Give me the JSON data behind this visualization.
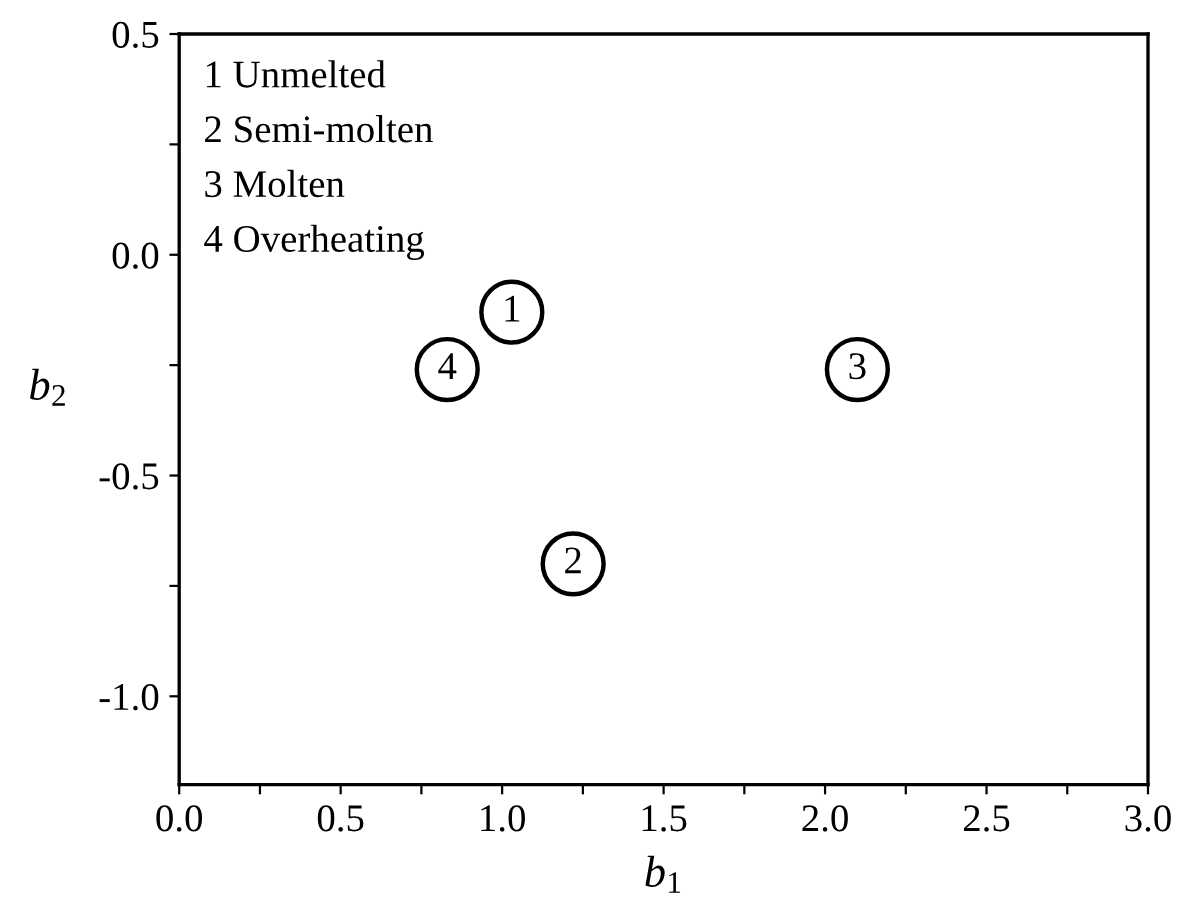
{
  "chart_data": {
    "type": "scatter",
    "xlabel": "b$_{1}$",
    "ylabel": "b$_{2}$",
    "series": [
      {
        "color": "#000000",
        "x": [
          1.03,
          1.22,
          2.1,
          0.83
        ],
        "values": [
          -0.13,
          -0.7,
          -0.26,
          -0.26
        ]
      }
    ],
    "marker": "circle",
    "annotations": [
      {
        "text": "1",
        "x": 1.03,
        "y": -0.13
      },
      {
        "text": "2",
        "x": 1.22,
        "y": -0.7
      },
      {
        "text": "3",
        "x": 2.1,
        "y": -0.26
      },
      {
        "text": "4",
        "x": 0.83,
        "y": -0.26
      },
      "1 Unmelted",
      "2 Semi-molten",
      "3 Molten",
      "4 Overheating"
    ],
    "xlim": [
      0,
      3
    ],
    "ylim": [
      -1.2,
      0.5
    ],
    "xticks": [
      {
        "value": 0,
        "label": "0.0"
      },
      {
        "value": 0.25,
        "label": null
      },
      0.5,
      {
        "value": 0.75,
        "label": null
      },
      {
        "value": 1,
        "label": "1.0"
      },
      {
        "value": 1.25,
        "label": null
      },
      1.5,
      {
        "value": 1.75,
        "label": null
      },
      {
        "value": 2,
        "label": "2.0"
      },
      {
        "value": 2.25,
        "label": null
      },
      2.5,
      {
        "value": 2.75,
        "label": null
      },
      {
        "value": 3,
        "label": "3.0"
      }
    ],
    "yticks": [
      {
        "value": -1,
        "label": "-1.0"
      },
      {
        "value": -0.75,
        "label": null
      },
      -0.5,
      {
        "value": -0.25,
        "label": null
      },
      {
        "value": 0,
        "label": "0.0"
      },
      {
        "value": 0.25,
        "label": null
      },
      0.5
    ],
    "grid": false,
    "legend": false
  }
}
